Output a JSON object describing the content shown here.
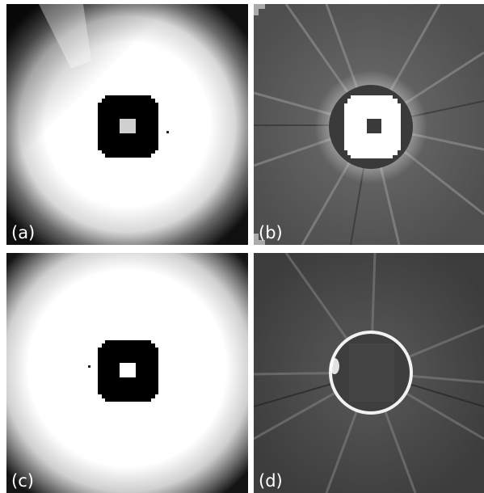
{
  "figure": {
    "panels": [
      {
        "id": "a",
        "label": "(a)"
      },
      {
        "id": "b",
        "label": "(b)"
      },
      {
        "id": "c",
        "label": "(c)"
      },
      {
        "id": "d",
        "label": "(d)"
      }
    ]
  }
}
